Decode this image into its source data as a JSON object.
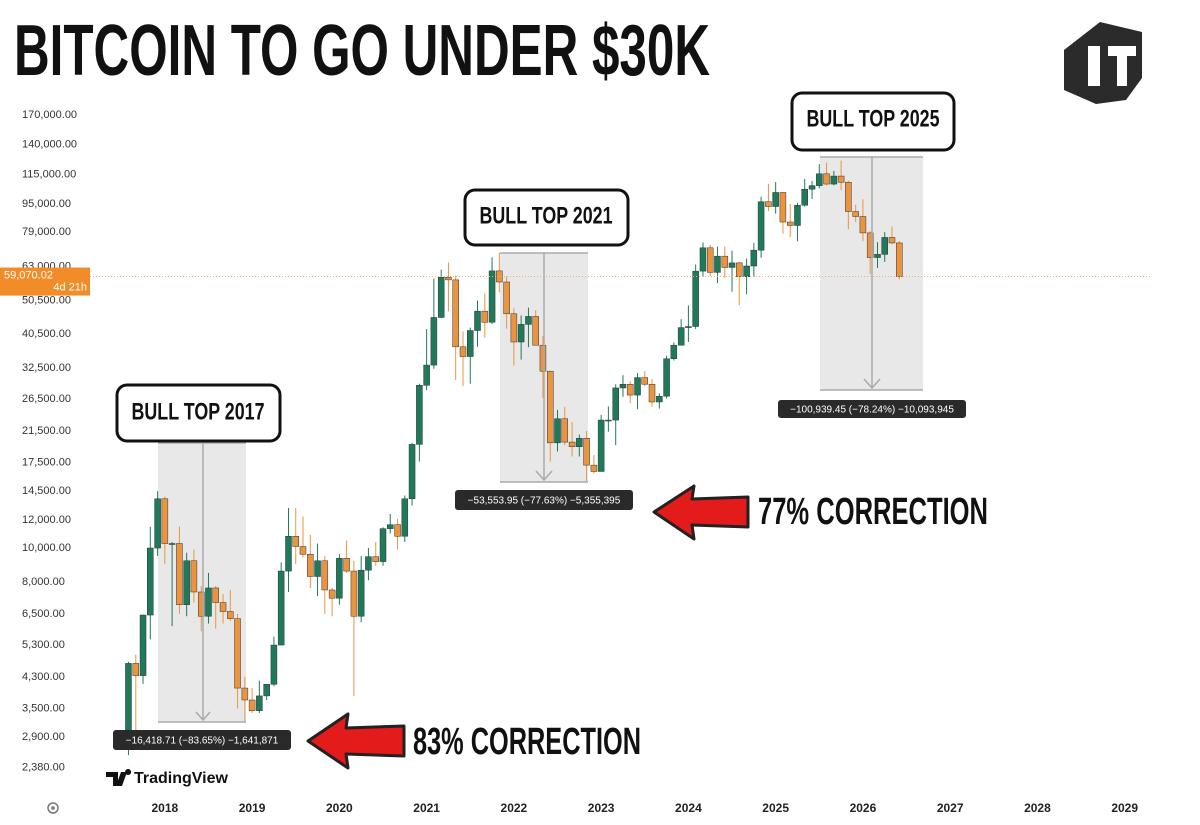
{
  "chart_data": {
    "type": "candlestick",
    "title": "BITCOIN TO GO UNDER $30K",
    "log_scale": true,
    "grid": false,
    "up_color": "#1f7a5c",
    "down_color": "#ea9440",
    "ylim": [
      2000,
      190000
    ],
    "yticks": [
      {
        "value": 2380,
        "label": "2,380.00"
      },
      {
        "value": 2900,
        "label": "2,900.00"
      },
      {
        "value": 3500,
        "label": "3,500.00"
      },
      {
        "value": 4300,
        "label": "4,300.00"
      },
      {
        "value": 5300,
        "label": "5,300.00"
      },
      {
        "value": 6500,
        "label": "6,500.00"
      },
      {
        "value": 8000,
        "label": "8,000.00"
      },
      {
        "value": 10000,
        "label": "10,000.00"
      },
      {
        "value": 12000,
        "label": "12,000.00"
      },
      {
        "value": 14500,
        "label": "14,500.00"
      },
      {
        "value": 17500,
        "label": "17,500.00"
      },
      {
        "value": 21500,
        "label": "21,500.00"
      },
      {
        "value": 26500,
        "label": "26,500.00"
      },
      {
        "value": 32500,
        "label": "32,500.00"
      },
      {
        "value": 40500,
        "label": "40,500.00"
      },
      {
        "value": 50500,
        "label": "50,500.00"
      },
      {
        "value": 63000,
        "label": "63,000.00"
      },
      {
        "value": 79000,
        "label": "79,000.00"
      },
      {
        "value": 95000,
        "label": "95,000.00"
      },
      {
        "value": 115000,
        "label": "115,000.00"
      },
      {
        "value": 140000,
        "label": "140,000.00"
      },
      {
        "value": 170000,
        "label": "170,000.00"
      }
    ],
    "xlim": [
      2016.34,
      2029.29
    ],
    "xticks": [
      2018,
      2019,
      2020,
      2021,
      2022,
      2023,
      2024,
      2025,
      2026,
      2027,
      2028,
      2029
    ],
    "x": [
      2017.583,
      2017.667,
      2017.75,
      2017.833,
      2017.917,
      2018,
      2018.083,
      2018.167,
      2018.25,
      2018.333,
      2018.417,
      2018.5,
      2018.583,
      2018.667,
      2018.75,
      2018.833,
      2018.917,
      2019,
      2019.083,
      2019.167,
      2019.25,
      2019.333,
      2019.417,
      2019.5,
      2019.583,
      2019.667,
      2019.75,
      2019.833,
      2019.917,
      2020,
      2020.083,
      2020.167,
      2020.25,
      2020.333,
      2020.417,
      2020.5,
      2020.583,
      2020.667,
      2020.75,
      2020.833,
      2020.917,
      2021,
      2021.083,
      2021.167,
      2021.25,
      2021.333,
      2021.417,
      2021.5,
      2021.583,
      2021.667,
      2021.75,
      2021.833,
      2021.917,
      2022,
      2022.083,
      2022.167,
      2022.25,
      2022.333,
      2022.417,
      2022.5,
      2022.583,
      2022.667,
      2022.75,
      2022.833,
      2022.917,
      2023,
      2023.083,
      2023.167,
      2023.25,
      2023.333,
      2023.417,
      2023.5,
      2023.583,
      2023.667,
      2023.75,
      2023.833,
      2023.917,
      2024,
      2024.083,
      2024.167,
      2024.25,
      2024.333,
      2024.417,
      2024.5,
      2024.583,
      2024.667,
      2024.75,
      2024.833,
      2024.917,
      2025,
      2025.083,
      2025.167,
      2025.25,
      2025.333,
      2025.417,
      2025.5,
      2025.583,
      2025.667,
      2025.75,
      2025.833,
      2025.917,
      2026,
      2026.083,
      2026.167,
      2026.25,
      2026.333,
      2026.417
    ],
    "open": [
      2870,
      4700,
      4340,
      6450,
      10000,
      13800,
      10300,
      10300,
      6900,
      9200,
      7500,
      6400,
      7700,
      7000,
      6600,
      6300,
      4000,
      3700,
      3450,
      3800,
      4100,
      5300,
      8600,
      10800,
      10100,
      9600,
      8300,
      9200,
      7600,
      7200,
      9350,
      8600,
      6400,
      8650,
      9450,
      9150,
      11350,
      11650,
      10800,
      13800,
      19700,
      29000,
      33100,
      45200,
      58800,
      57800,
      37300,
      35000,
      41500,
      47100,
      43800,
      61300,
      57000,
      46300,
      38500,
      43200,
      45500,
      37700,
      31800,
      19900,
      23300,
      20000,
      19400,
      20500,
      17200,
      16500,
      23100,
      23100,
      28500,
      29200,
      27200,
      30500,
      29200,
      26000,
      27000,
      34500,
      37700,
      42300,
      42600,
      61200,
      71300,
      60700,
      67500,
      62700,
      64600,
      59000,
      63300,
      70200,
      96400,
      93400,
      102400,
      84400,
      82500,
      94200,
      104600,
      107100,
      115700,
      108200,
      114000,
      109500,
      90400,
      87500,
      78600,
      66900,
      68300,
      76300,
      73600
    ],
    "high": [
      4750,
      4980,
      6470,
      11500,
      14500,
      14000,
      10400,
      11500,
      9700,
      9900,
      7800,
      8500,
      7800,
      7400,
      7600,
      6500,
      4300,
      4000,
      4200,
      4100,
      5600,
      9100,
      13000,
      13000,
      12300,
      10900,
      10300,
      9500,
      7700,
      9600,
      10500,
      9200,
      9500,
      10000,
      10400,
      11450,
      12500,
      12100,
      14100,
      19900,
      29300,
      41900,
      58300,
      61800,
      64800,
      59500,
      41300,
      42300,
      50500,
      52900,
      67000,
      69000,
      59100,
      48000,
      45800,
      48200,
      47400,
      40000,
      31900,
      24700,
      25200,
      22800,
      21000,
      21500,
      18400,
      23900,
      25250,
      29200,
      31000,
      29800,
      31400,
      31800,
      30200,
      27500,
      35200,
      38400,
      44700,
      48900,
      63900,
      73800,
      72800,
      71900,
      71900,
      70000,
      65000,
      66500,
      73600,
      99600,
      108300,
      109600,
      102700,
      95000,
      95700,
      111900,
      110500,
      123200,
      124400,
      117900,
      126200,
      110600,
      94500,
      97900,
      79500,
      74000,
      79000,
      82000,
      74500
    ],
    "low": [
      2580,
      2980,
      4110,
      5500,
      9500,
      9000,
      6000,
      6500,
      6400,
      7000,
      5800,
      6100,
      5900,
      6100,
      6200,
      3500,
      3200,
      3400,
      3400,
      3700,
      4050,
      5300,
      7500,
      9000,
      9400,
      7700,
      7300,
      6500,
      6400,
      6900,
      8500,
      3800,
      6150,
      8100,
      8900,
      8900,
      11000,
      9900,
      10400,
      13200,
      17600,
      28100,
      32300,
      45000,
      47000,
      30000,
      28800,
      29300,
      37300,
      39600,
      43300,
      53300,
      42000,
      33000,
      34300,
      37200,
      37700,
      26700,
      17600,
      18800,
      19600,
      18200,
      18200,
      15500,
      16300,
      16500,
      21400,
      19600,
      26900,
      25800,
      24800,
      28900,
      25200,
      24900,
      26600,
      34100,
      37600,
      38500,
      41900,
      59100,
      59200,
      56600,
      58500,
      53500,
      49000,
      52600,
      58900,
      66800,
      90500,
      89200,
      78200,
      76600,
      74400,
      93400,
      98200,
      105100,
      107300,
      107300,
      104000,
      80500,
      84400,
      74500,
      60000,
      62500,
      65000,
      73000,
      58000
    ],
    "close": [
      4700,
      4340,
      6450,
      10000,
      13800,
      10300,
      10300,
      6900,
      9200,
      7500,
      6400,
      7700,
      7000,
      6600,
      6300,
      4000,
      3700,
      3450,
      3800,
      4100,
      5300,
      8600,
      10800,
      10100,
      9600,
      8300,
      9200,
      7600,
      7200,
      9350,
      8600,
      6400,
      8650,
      9450,
      9150,
      11350,
      11650,
      10800,
      13800,
      19700,
      29000,
      33100,
      45200,
      58800,
      57800,
      37300,
      35000,
      41500,
      47100,
      43800,
      61300,
      57000,
      46300,
      38500,
      43200,
      45500,
      37700,
      31800,
      19900,
      23300,
      20000,
      19400,
      20500,
      17200,
      16500,
      23100,
      23100,
      28500,
      29200,
      27200,
      30500,
      29200,
      26000,
      27000,
      34500,
      37700,
      42300,
      42600,
      61200,
      71300,
      60700,
      67500,
      62700,
      64600,
      59000,
      63300,
      70200,
      96400,
      93400,
      102400,
      84400,
      82500,
      94200,
      104600,
      107100,
      115700,
      108200,
      114000,
      109500,
      90400,
      87500,
      78600,
      66900,
      68300,
      76300,
      73600,
      59070.02
    ],
    "last_price": {
      "value": 59070.02,
      "label": "59,070.02"
    },
    "countdown": "4d 21h",
    "annotations": [
      "BULL TOP 2017",
      "BULL TOP 2021",
      "BULL TOP 2025"
    ],
    "measures": [
      "−16,418.71 (−83.65%) −1,641,871",
      "−53,553.95 (−77.63%) −5,355,395",
      "−100,939.45 (−78.24%) −10,093,945"
    ],
    "callouts": [
      "83% CORRECTION",
      "77% CORRECTION"
    ],
    "watermark": "TradingView"
  }
}
